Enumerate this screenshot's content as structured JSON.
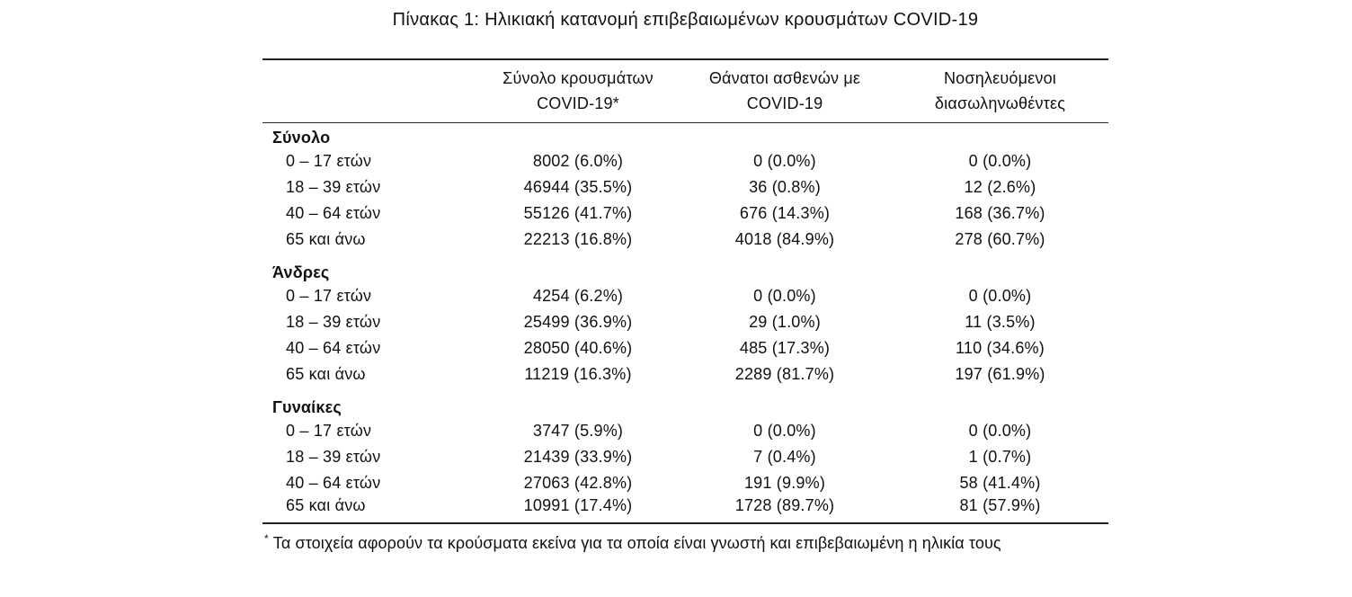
{
  "title": "Πίνακας 1: Ηλικιακή κατανομή επιβεβαιωμένων κρουσμάτων COVID-19",
  "table": {
    "columns": [
      {
        "id": "cases",
        "line1": "Σύνολο κρουσμάτων",
        "line2": "COVID-19*"
      },
      {
        "id": "deaths",
        "line1": "Θάνατοι ασθενών με",
        "line2": "COVID-19"
      },
      {
        "id": "intubated",
        "line1": "Νοσηλευόμενοι",
        "line2": "διασωληνωθέντες"
      }
    ],
    "sections": [
      {
        "label": "Σύνολο",
        "rows": [
          {
            "label": "0 – 17 ετών",
            "cases": "8002 (6.0%)",
            "deaths": "0 (0.0%)",
            "intubated": "0 (0.0%)"
          },
          {
            "label": "18 – 39 ετών",
            "cases": "46944 (35.5%)",
            "deaths": "36 (0.8%)",
            "intubated": "12 (2.6%)"
          },
          {
            "label": "40 – 64 ετών",
            "cases": "55126 (41.7%)",
            "deaths": "676 (14.3%)",
            "intubated": "168 (36.7%)"
          },
          {
            "label": "65 και άνω",
            "cases": "22213 (16.8%)",
            "deaths": "4018 (84.9%)",
            "intubated": "278 (60.7%)"
          }
        ]
      },
      {
        "label": "Άνδρες",
        "rows": [
          {
            "label": "0 – 17 ετών",
            "cases": "4254 (6.2%)",
            "deaths": "0 (0.0%)",
            "intubated": "0 (0.0%)"
          },
          {
            "label": "18 – 39 ετών",
            "cases": "25499 (36.9%)",
            "deaths": "29 (1.0%)",
            "intubated": "11 (3.5%)"
          },
          {
            "label": "40 – 64 ετών",
            "cases": "28050 (40.6%)",
            "deaths": "485 (17.3%)",
            "intubated": "110 (34.6%)"
          },
          {
            "label": "65 και άνω",
            "cases": "11219 (16.3%)",
            "deaths": "2289 (81.7%)",
            "intubated": "197 (61.9%)"
          }
        ]
      },
      {
        "label": "Γυναίκες",
        "rows": [
          {
            "label": "0 – 17 ετών",
            "cases": "3747 (5.9%)",
            "deaths": "0 (0.0%)",
            "intubated": "0 (0.0%)"
          },
          {
            "label": "18 – 39 ετών",
            "cases": "21439 (33.9%)",
            "deaths": "7 (0.4%)",
            "intubated": "1 (0.7%)"
          },
          {
            "label": "40 – 64 ετών",
            "cases": "27063 (42.8%)",
            "deaths": "191 (9.9%)",
            "intubated": "58 (41.4%)"
          },
          {
            "label": "65 και άνω",
            "cases": "10991 (17.4%)",
            "deaths": "1728 (89.7%)",
            "intubated": "81 (57.9%)"
          }
        ]
      }
    ]
  },
  "footnote": {
    "marker": "*",
    "text": "Τα στοιχεία αφορούν τα κρούσματα εκείνα για τα οποία είναι γνωστή και επιβεβαιωμένη η ηλικία τους"
  },
  "colors": {
    "text": "#111111",
    "rule": "#1f1f1f",
    "background": "#ffffff"
  }
}
